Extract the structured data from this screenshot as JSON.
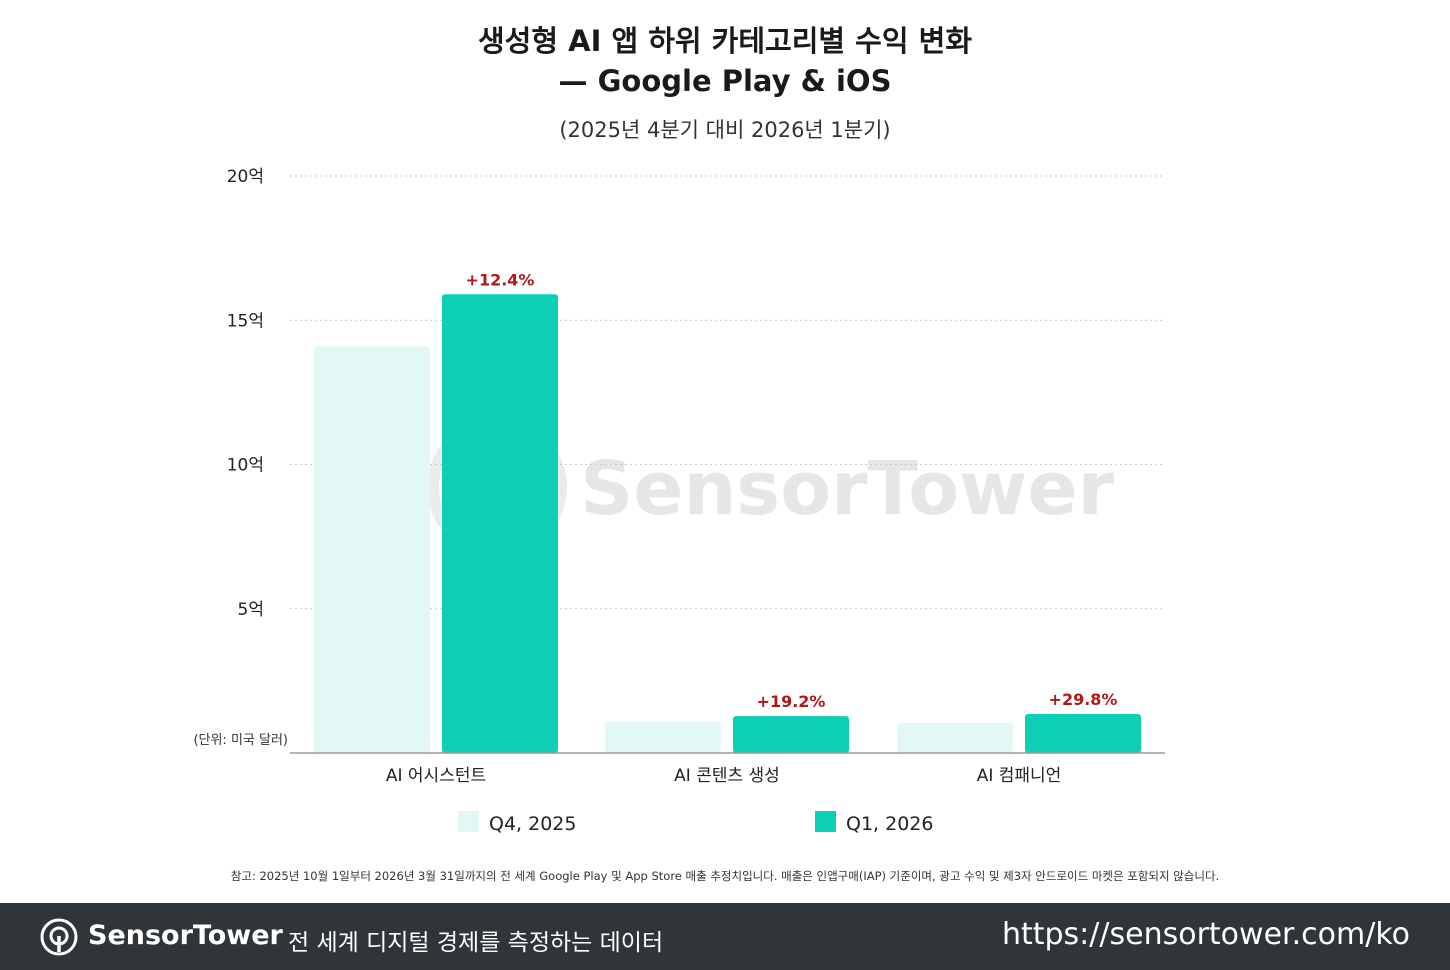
{
  "title_line1": "생성형 AI 앱 하위 카테고리별 수익 변화",
  "title_line2": "— Google Play & iOS",
  "subtitle": "(2025년 4분기 대비 2026년 1분기)",
  "unit_note": "(단위: 미국 달러)",
  "note": "참고: 2025년 10월 1일부터 2026년 3월 31일까지의 전 세계 Google Play 및 App Store 매출 추정치입니다. 매출은 인앱구매(IAP) 기준이며, 광고 수익 및 제3자 안드로이드 마켓은 포함되지 않습니다.",
  "watermark": "SensorTower",
  "footer": {
    "brand": "SensorTower",
    "tagline": "전 세계 디지털 경제를 측정하는 데이터",
    "url": "https://sensortower.com/ko"
  },
  "colors": {
    "q4": "#e3f8f6",
    "q1": "#0dcfb8",
    "pct": "#b01818",
    "footer_bg": "#2f3538"
  },
  "chart_data": {
    "type": "bar",
    "title": "생성형 AI 앱 하위 카테고리별 수익 변화 — Google Play & iOS",
    "subtitle": "(2025년 4분기 대비 2026년 1분기)",
    "categories": [
      "AI 어시스턴트",
      "AI 콘텐츠 생성",
      "AI 컴패니언"
    ],
    "series": [
      {
        "name": "Q4, 2025",
        "values": [
          1.41,
          0.108,
          0.104
        ]
      },
      {
        "name": "Q1, 2026",
        "values": [
          1.59,
          0.128,
          0.135
        ]
      }
    ],
    "annotations": [
      "+12.4%",
      "+19.2%",
      "+29.8%"
    ],
    "yticks": [
      {
        "value": 0.5,
        "label": "5억"
      },
      {
        "value": 1.0,
        "label": "10억"
      },
      {
        "value": 1.5,
        "label": "15억"
      },
      {
        "value": 2.0,
        "label": "20억"
      }
    ],
    "ylim": [
      0,
      2.0
    ],
    "ylabel": "",
    "xlabel": "",
    "grid": true,
    "legend_position": "bottom"
  }
}
